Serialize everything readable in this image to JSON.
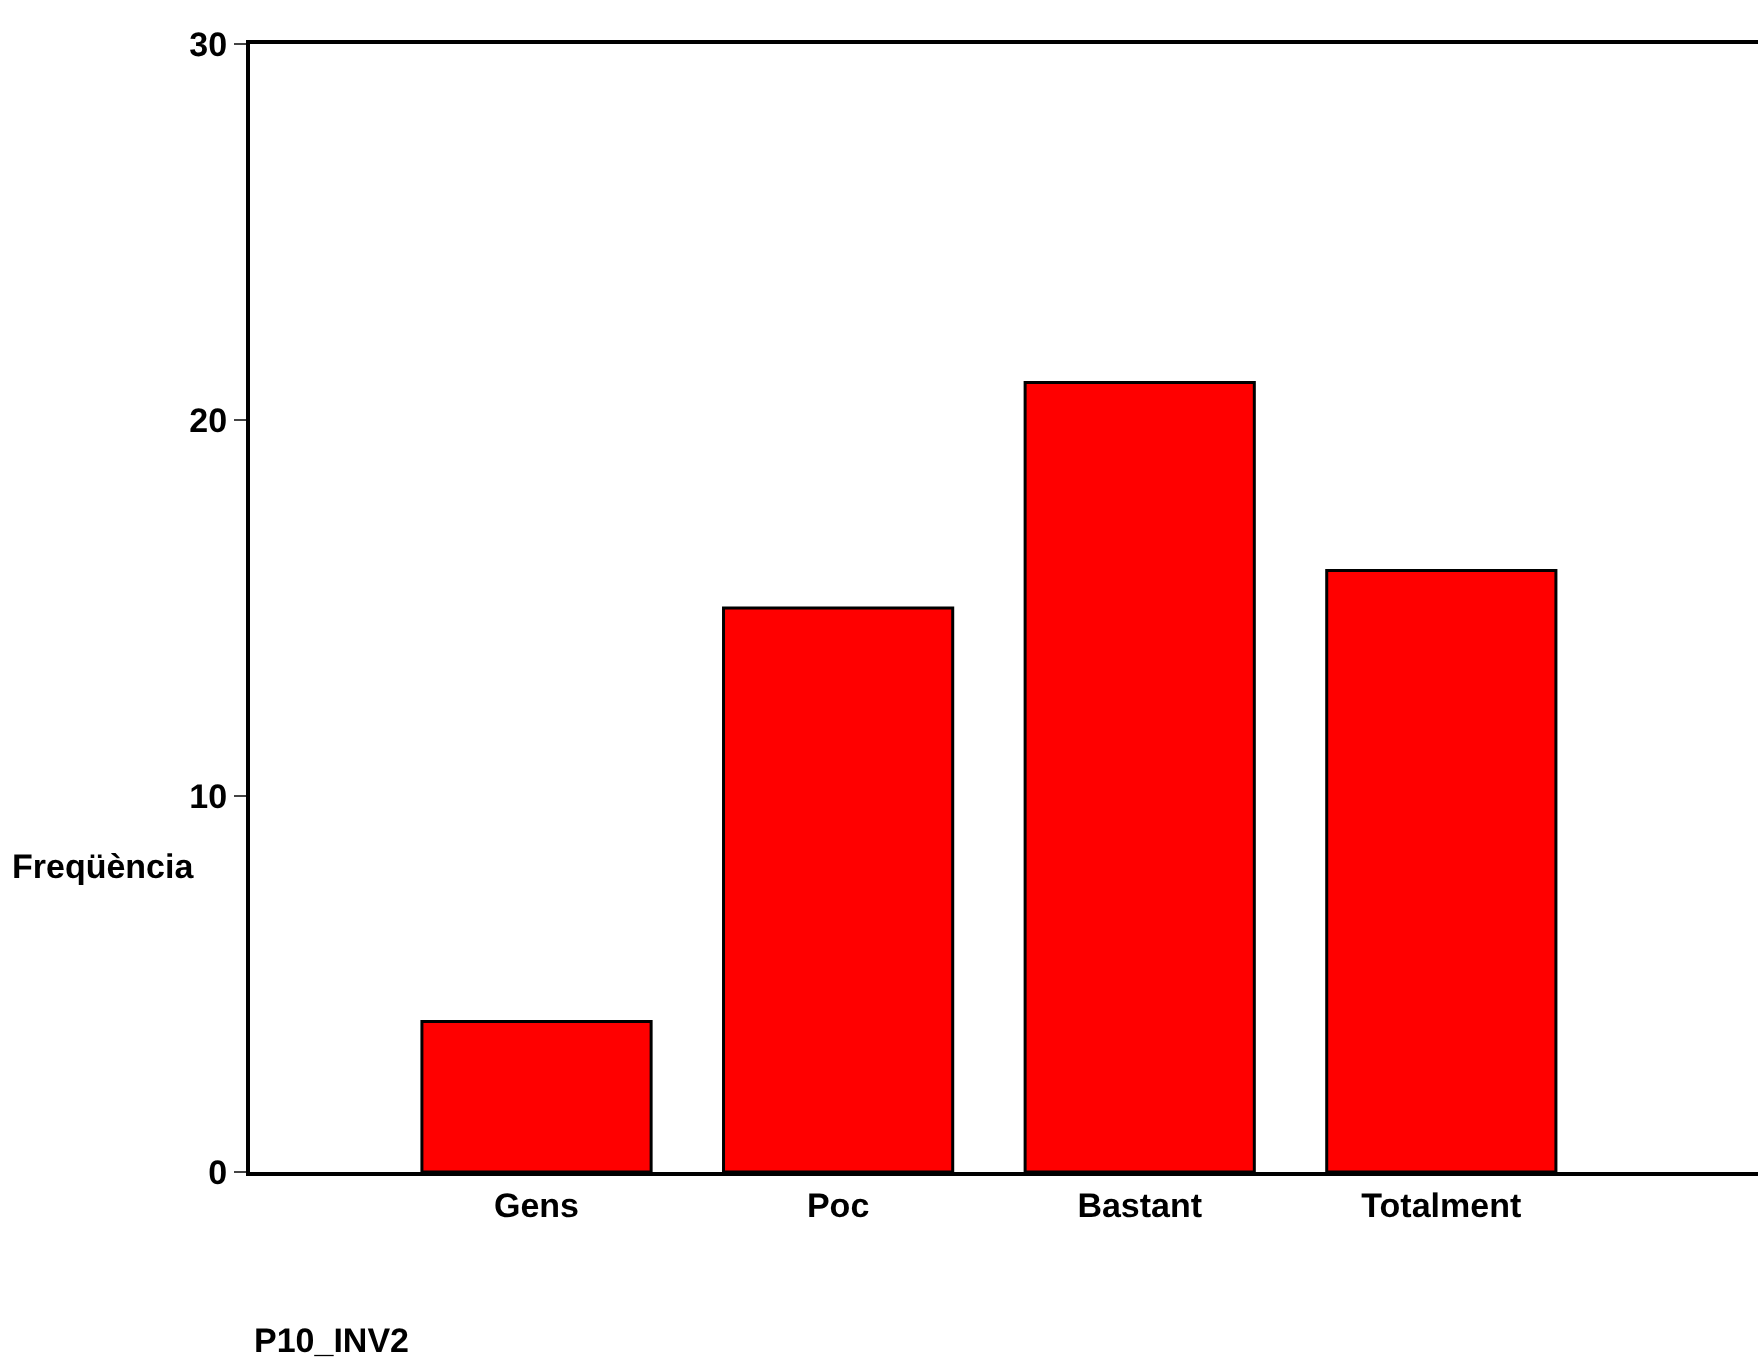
{
  "chart_data": {
    "type": "bar",
    "xlabel": "P10_INV2",
    "ylabel": "Freqüència",
    "categories": [
      "Gens",
      "Poc",
      "Bastant",
      "Totalment"
    ],
    "values": [
      4,
      15,
      21,
      16
    ],
    "color": "#ff0000",
    "ylim": [
      0,
      30
    ],
    "yticks": [
      0,
      10,
      20,
      30
    ]
  }
}
